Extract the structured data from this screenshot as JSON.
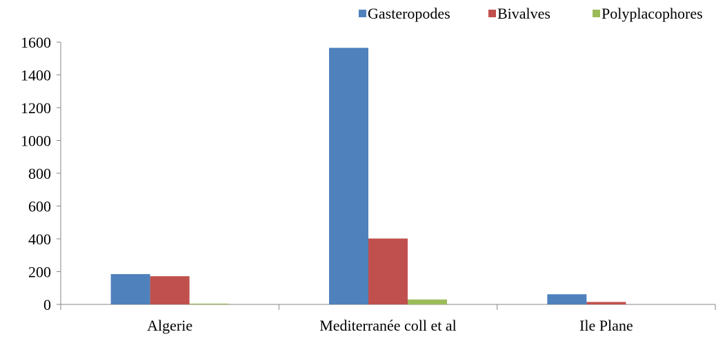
{
  "chart_data": {
    "type": "bar",
    "categories": [
      "Algerie",
      "Mediterranée coll et al",
      "Ile Plane"
    ],
    "series": [
      {
        "name": "Gasteropodes",
        "color": "#4f81bd",
        "values": [
          185,
          1565,
          62
        ]
      },
      {
        "name": "Bivalves",
        "color": "#c0504d",
        "values": [
          172,
          402,
          15
        ]
      },
      {
        "name": "Polyplacophores",
        "color": "#9bbb59",
        "values": [
          5,
          30,
          0
        ]
      }
    ],
    "yticks": [
      "0",
      "200",
      "400",
      "600",
      "800",
      "1000",
      "1200",
      "1400",
      "1600"
    ],
    "ylim": [
      0,
      1600
    ],
    "title": "",
    "xlabel": "",
    "ylabel": "",
    "legend_position": "top-right",
    "grid": false
  }
}
